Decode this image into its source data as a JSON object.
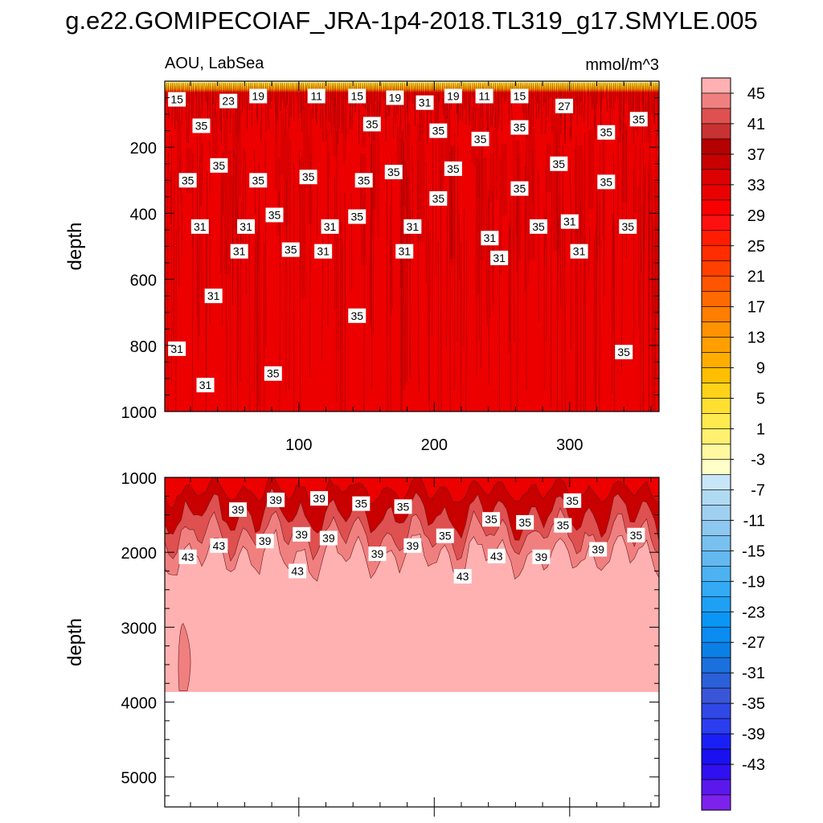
{
  "figure": {
    "title": "g.e22.GOMIPECOIAF_JRA-1p4-2018.TL319_g17.SMYLE.005"
  },
  "chart_data": [
    {
      "type": "heatmap",
      "subtitle_left": "AOU, LabSea",
      "subtitle_right": "mmol/m^3",
      "xlabel": "",
      "ylabel": "depth",
      "xlim": [
        1,
        366
      ],
      "ylim": [
        1000,
        0
      ],
      "xticks": [
        "100",
        "200",
        "300"
      ],
      "yticks": [
        "200",
        "400",
        "600",
        "800",
        "1000"
      ],
      "surface_band_depth": 20,
      "surface_band_levels": [
        5,
        9,
        13,
        17,
        21,
        25
      ],
      "fill_level_deep": 33,
      "contour_labels": [
        {
          "text": "15",
          "x": 10,
          "y": 55
        },
        {
          "text": "23",
          "x": 48,
          "y": 60
        },
        {
          "text": "19",
          "x": 70,
          "y": 45
        },
        {
          "text": "11",
          "x": 113,
          "y": 45
        },
        {
          "text": "15",
          "x": 143,
          "y": 45
        },
        {
          "text": "19",
          "x": 171,
          "y": 50
        },
        {
          "text": "31",
          "x": 193,
          "y": 65
        },
        {
          "text": "19",
          "x": 214,
          "y": 45
        },
        {
          "text": "11",
          "x": 237,
          "y": 45
        },
        {
          "text": "15",
          "x": 263,
          "y": 45
        },
        {
          "text": "27",
          "x": 296,
          "y": 75
        },
        {
          "text": "35",
          "x": 28,
          "y": 135
        },
        {
          "text": "35",
          "x": 154,
          "y": 130
        },
        {
          "text": "35",
          "x": 203,
          "y": 150
        },
        {
          "text": "35",
          "x": 234,
          "y": 175
        },
        {
          "text": "35",
          "x": 263,
          "y": 140
        },
        {
          "text": "35",
          "x": 327,
          "y": 155
        },
        {
          "text": "35",
          "x": 351,
          "y": 115
        },
        {
          "text": "35",
          "x": 41,
          "y": 255
        },
        {
          "text": "35",
          "x": 18,
          "y": 300
        },
        {
          "text": "35",
          "x": 70,
          "y": 300
        },
        {
          "text": "35",
          "x": 107,
          "y": 290
        },
        {
          "text": "35",
          "x": 148,
          "y": 300
        },
        {
          "text": "35",
          "x": 170,
          "y": 275
        },
        {
          "text": "35",
          "x": 214,
          "y": 265
        },
        {
          "text": "35",
          "x": 203,
          "y": 355
        },
        {
          "text": "35",
          "x": 292,
          "y": 250
        },
        {
          "text": "35",
          "x": 263,
          "y": 325
        },
        {
          "text": "35",
          "x": 327,
          "y": 305
        },
        {
          "text": "31",
          "x": 27,
          "y": 440
        },
        {
          "text": "31",
          "x": 61,
          "y": 440
        },
        {
          "text": "35",
          "x": 82,
          "y": 405
        },
        {
          "text": "31",
          "x": 123,
          "y": 440
        },
        {
          "text": "35",
          "x": 143,
          "y": 410
        },
        {
          "text": "31",
          "x": 184,
          "y": 440
        },
        {
          "text": "31",
          "x": 241,
          "y": 475
        },
        {
          "text": "35",
          "x": 277,
          "y": 440
        },
        {
          "text": "31",
          "x": 300,
          "y": 425
        },
        {
          "text": "35",
          "x": 343,
          "y": 440
        },
        {
          "text": "31",
          "x": 56,
          "y": 515
        },
        {
          "text": "35",
          "x": 94,
          "y": 510
        },
        {
          "text": "31",
          "x": 118,
          "y": 515
        },
        {
          "text": "31",
          "x": 178,
          "y": 515
        },
        {
          "text": "31",
          "x": 248,
          "y": 535
        },
        {
          "text": "31",
          "x": 307,
          "y": 515
        },
        {
          "text": "31",
          "x": 37,
          "y": 650
        },
        {
          "text": "35",
          "x": 143,
          "y": 710
        },
        {
          "text": "31",
          "x": 10,
          "y": 810
        },
        {
          "text": "35",
          "x": 340,
          "y": 820
        },
        {
          "text": "31",
          "x": 31,
          "y": 920
        },
        {
          "text": "35",
          "x": 81,
          "y": 885
        }
      ]
    },
    {
      "type": "heatmap",
      "xlabel": "",
      "ylabel": "depth",
      "xlim": [
        1,
        366
      ],
      "ylim": [
        5400,
        1000
      ],
      "yticks": [
        "1000",
        "2000",
        "3000",
        "4000",
        "5000"
      ],
      "sea_floor_depth": 3860,
      "fill_level_deep": 45,
      "contour_labels": [
        {
          "text": "39",
          "x": 55,
          "y": 1430
        },
        {
          "text": "39",
          "x": 83,
          "y": 1300
        },
        {
          "text": "39",
          "x": 115,
          "y": 1280
        },
        {
          "text": "35",
          "x": 146,
          "y": 1350
        },
        {
          "text": "35",
          "x": 177,
          "y": 1390
        },
        {
          "text": "35",
          "x": 267,
          "y": 1600
        },
        {
          "text": "35",
          "x": 295,
          "y": 1640
        },
        {
          "text": "35",
          "x": 242,
          "y": 1560
        },
        {
          "text": "35",
          "x": 302,
          "y": 1310
        },
        {
          "text": "35",
          "x": 349,
          "y": 1770
        },
        {
          "text": "43",
          "x": 18,
          "y": 2060
        },
        {
          "text": "43",
          "x": 41,
          "y": 1910
        },
        {
          "text": "39",
          "x": 75,
          "y": 1850
        },
        {
          "text": "39",
          "x": 102,
          "y": 1760
        },
        {
          "text": "39",
          "x": 122,
          "y": 1810
        },
        {
          "text": "39",
          "x": 158,
          "y": 2020
        },
        {
          "text": "39",
          "x": 184,
          "y": 1910
        },
        {
          "text": "35",
          "x": 208,
          "y": 1780
        },
        {
          "text": "43",
          "x": 99,
          "y": 2250
        },
        {
          "text": "43",
          "x": 221,
          "y": 2320
        },
        {
          "text": "43",
          "x": 246,
          "y": 2050
        },
        {
          "text": "39",
          "x": 279,
          "y": 2060
        },
        {
          "text": "39",
          "x": 321,
          "y": 1960
        }
      ]
    }
  ],
  "colorbar": {
    "colors": [
      "#ffb1b1",
      "#f08080",
      "#df5050",
      "#c83232",
      "#b40000",
      "#c80000",
      "#dc0000",
      "#ea0000",
      "#f80000",
      "#ff1010",
      "#ff1d00",
      "#ff2d00",
      "#ff4000",
      "#ff5500",
      "#ff6a00",
      "#ff7e00",
      "#ff9200",
      "#ffa000",
      "#ffae00",
      "#ffbf00",
      "#ffd21a",
      "#ffe030",
      "#ffea50",
      "#fff070",
      "#fff8a0",
      "#ffffc8",
      "#c8e6f8",
      "#b0daf2",
      "#a0d0f0",
      "#8cc8f0",
      "#78c0f0",
      "#64b8f0",
      "#4cb2f2",
      "#32aaf5",
      "#1ea0f5",
      "#0a96f5",
      "#0a8cf0",
      "#0a80e6",
      "#1a70dc",
      "#2a60d8",
      "#3a56d8",
      "#2f48e6",
      "#2a3ef0",
      "#1a20f5",
      "#1a10f0",
      "#3010f0",
      "#5a18ec",
      "#7d22ec"
    ],
    "labels": [
      "45",
      "41",
      "37",
      "33",
      "29",
      "25",
      "21",
      "17",
      "13",
      "9",
      "5",
      "1",
      "-3",
      "-7",
      "-11",
      "-15",
      "-19",
      "-23",
      "-27",
      "-31",
      "-35",
      "-39",
      "-43"
    ]
  }
}
